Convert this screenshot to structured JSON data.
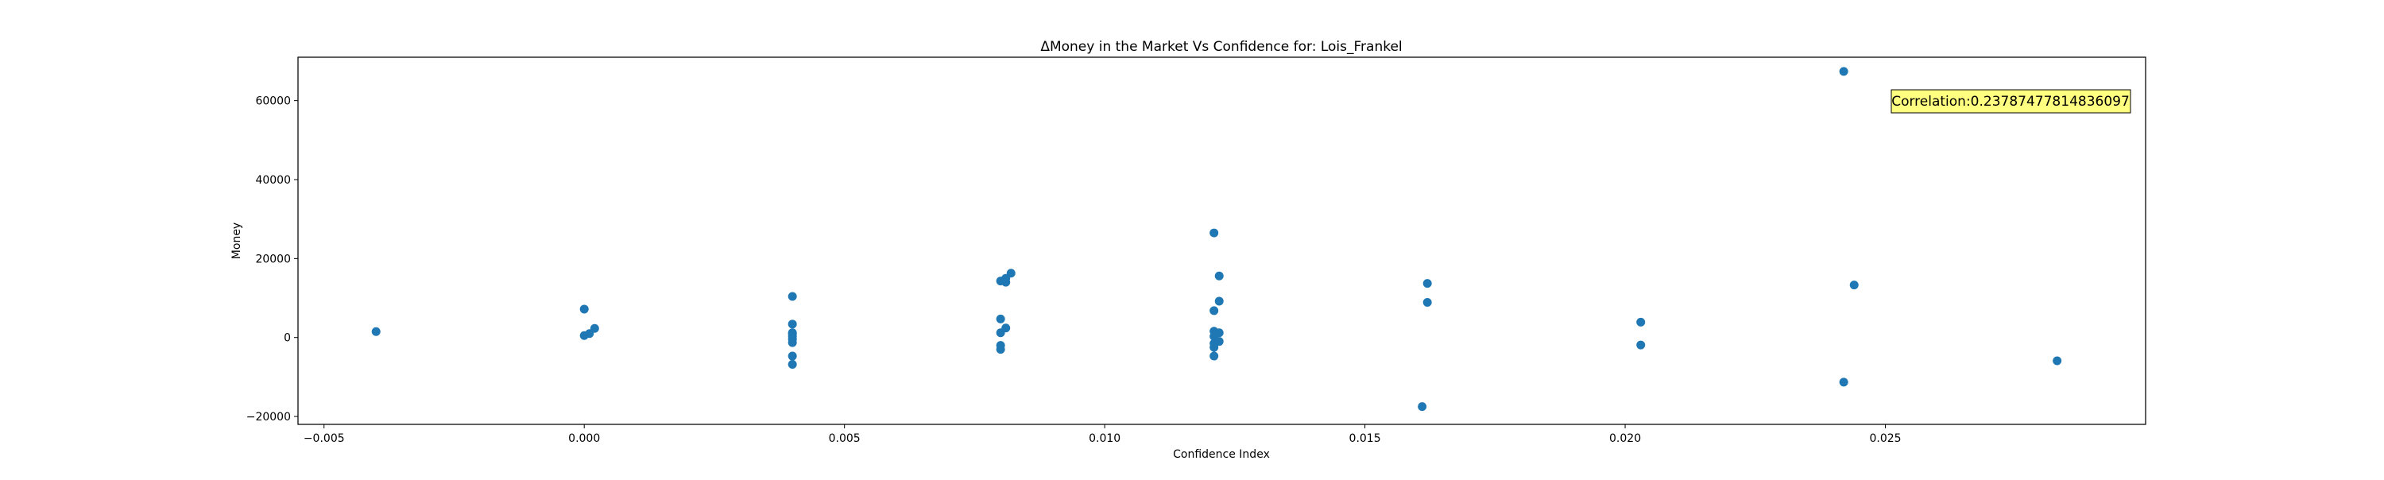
{
  "chart_data": {
    "type": "scatter",
    "title": "ΔMoney in the Market Vs Confidence for: Lois_Frankel",
    "xlabel": "Confidence Index",
    "ylabel": "Money",
    "xlim": [
      -0.0055,
      0.03
    ],
    "ylim": [
      -22000,
      71000
    ],
    "x_ticks": [
      -0.005,
      0.0,
      0.005,
      0.01,
      0.015,
      0.02,
      0.025
    ],
    "x_tick_labels": [
      "−0.005",
      "0.000",
      "0.005",
      "0.010",
      "0.015",
      "0.020",
      "0.025"
    ],
    "y_ticks": [
      -20000,
      0,
      20000,
      40000,
      60000
    ],
    "y_tick_labels": [
      "−20000",
      "0",
      "20000",
      "40000",
      "60000"
    ],
    "grid": false,
    "marker_color": "#1f77b4",
    "annotation": {
      "text": "Correlation:0.23787477814836097",
      "box_color": "#ffff80",
      "placement": "top-right"
    },
    "x": [
      -0.004,
      0.0,
      0.0,
      0.0001,
      0.0002,
      0.004,
      0.004,
      0.004,
      0.004,
      0.004,
      0.004,
      0.004,
      0.004,
      0.004,
      0.008,
      0.008,
      0.008,
      0.008,
      0.008,
      0.0081,
      0.0081,
      0.0081,
      0.0082,
      0.0121,
      0.0121,
      0.0121,
      0.0121,
      0.0121,
      0.0121,
      0.0121,
      0.0122,
      0.0122,
      0.0122,
      0.0122,
      0.0161,
      0.0162,
      0.0162,
      0.0203,
      0.0203,
      0.0242,
      0.0242,
      0.0244,
      0.0283
    ],
    "y": [
      1500,
      7200,
      500,
      1000,
      2300,
      10400,
      3400,
      1200,
      300,
      -400,
      -1300,
      -4700,
      -6800,
      900,
      14300,
      4700,
      1200,
      -2000,
      -3000,
      15000,
      14000,
      2400,
      16300,
      26500,
      6800,
      1600,
      300,
      -1500,
      -2500,
      -4700,
      15600,
      9200,
      1200,
      -1000,
      -17500,
      13700,
      8900,
      3900,
      -1900,
      67400,
      -11300,
      13300,
      -5900
    ]
  }
}
